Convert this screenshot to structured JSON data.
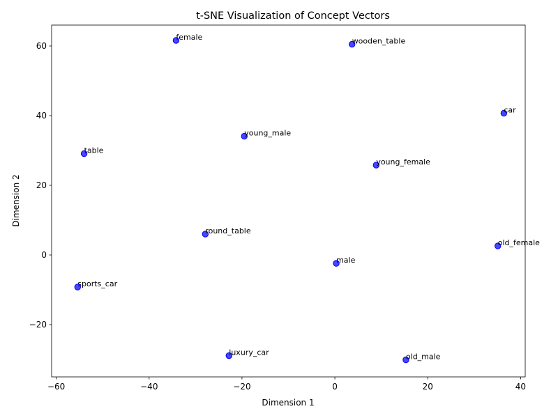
{
  "chart_data": {
    "type": "scatter",
    "title": "t-SNE Visualization of Concept Vectors",
    "xlabel": "Dimension 1",
    "ylabel": "Dimension 2",
    "xlim": [
      -61,
      41
    ],
    "ylim": [
      -35,
      66
    ],
    "xticks": [
      -60,
      -40,
      -20,
      0,
      20,
      40
    ],
    "yticks": [
      -20,
      0,
      20,
      40,
      60
    ],
    "xtick_labels": [
      "−60",
      "−40",
      "−20",
      "0",
      "20",
      "40"
    ],
    "ytick_labels": [
      "−20",
      "0",
      "20",
      "40",
      "60"
    ],
    "grid": false,
    "marker_color": "#0000ff",
    "points": [
      {
        "label": "female",
        "x": -34.2,
        "y": 61.6
      },
      {
        "label": "wooden_table",
        "x": 3.7,
        "y": 60.5
      },
      {
        "label": "car",
        "x": 36.4,
        "y": 40.7
      },
      {
        "label": "young_male",
        "x": -19.5,
        "y": 34.1
      },
      {
        "label": "table",
        "x": -54.0,
        "y": 29.1
      },
      {
        "label": "young_female",
        "x": 8.9,
        "y": 25.8
      },
      {
        "label": "round_table",
        "x": -27.9,
        "y": 6.0
      },
      {
        "label": "old_female",
        "x": 35.1,
        "y": 2.6
      },
      {
        "label": "male",
        "x": 0.3,
        "y": -2.4
      },
      {
        "label": "sports_car",
        "x": -55.4,
        "y": -9.2
      },
      {
        "label": "luxury_car",
        "x": -22.8,
        "y": -28.9
      },
      {
        "label": "old_male",
        "x": 15.3,
        "y": -30.1
      }
    ]
  }
}
